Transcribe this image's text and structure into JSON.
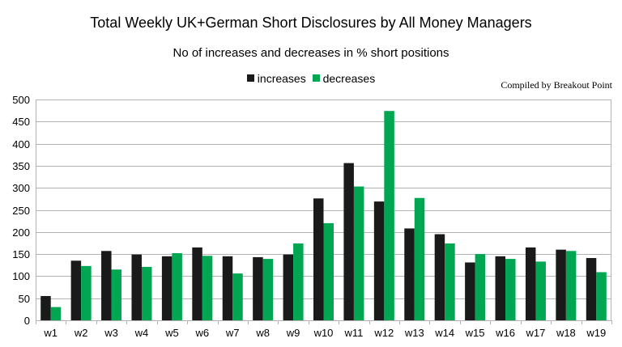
{
  "chart_data": {
    "type": "bar",
    "title": "Total Weekly UK+German Short Disclosures by All Money Managers",
    "subtitle": "No of increases and decreases in % short positions",
    "credit": "Compiled by Breakout Point",
    "categories": [
      "w1",
      "w2",
      "w3",
      "w4",
      "w5",
      "w6",
      "w7",
      "w8",
      "w9",
      "w10",
      "w11",
      "w12",
      "w13",
      "w14",
      "w15",
      "w16",
      "w17",
      "w18",
      "w19"
    ],
    "series": [
      {
        "name": "increases",
        "color": "#1a1a1a",
        "values": [
          55,
          135,
          157,
          149,
          145,
          165,
          145,
          143,
          149,
          276,
          356,
          269,
          208,
          195,
          131,
          145,
          165,
          160,
          141
        ]
      },
      {
        "name": "decreases",
        "color": "#00a651",
        "values": [
          30,
          123,
          115,
          121,
          152,
          146,
          106,
          139,
          174,
          220,
          303,
          474,
          277,
          174,
          150,
          139,
          133,
          157,
          109
        ]
      }
    ],
    "ylim": [
      0,
      500
    ],
    "yticks": [
      0,
      50,
      100,
      150,
      200,
      250,
      300,
      350,
      400,
      450,
      500
    ],
    "grid": true,
    "legend_position": "top"
  }
}
